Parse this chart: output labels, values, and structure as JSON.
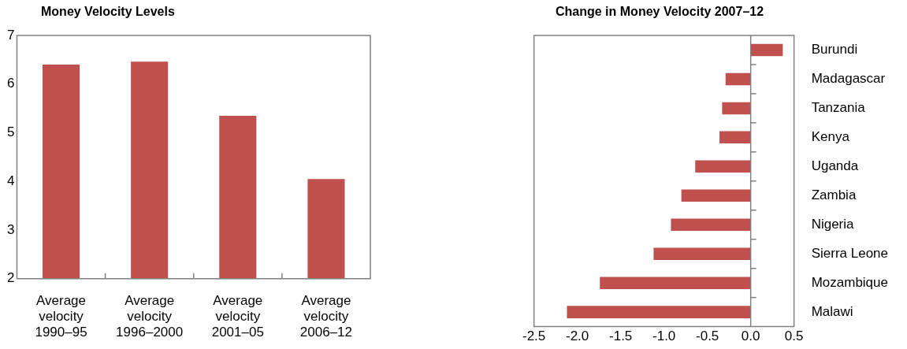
{
  "chart_data": [
    {
      "type": "bar",
      "title": "Money Velocity Levels",
      "categories": [
        "Average velocity 1990–95",
        "Average velocity 1996–2000",
        "Average velocity 2001–05",
        "Average velocity 2006–12"
      ],
      "values": [
        6.4,
        6.46,
        5.35,
        4.05
      ],
      "color": "#c0504d",
      "ylim": [
        2,
        7
      ],
      "yticks": [
        2,
        3,
        4,
        5,
        6,
        7
      ],
      "grid": false,
      "legend": false
    },
    {
      "type": "bar",
      "orientation": "horizontal",
      "title": "Change in Money Velocity 2007–12",
      "categories": [
        "Burundi",
        "Madagascar",
        "Tanzania",
        "Kenya",
        "Uganda",
        "Zambia",
        "Nigeria",
        "Sierra Leone",
        "Mozambique",
        "Malawi"
      ],
      "values": [
        0.37,
        -0.29,
        -0.33,
        -0.36,
        -0.64,
        -0.8,
        -0.92,
        -1.12,
        -1.74,
        -2.12
      ],
      "color": "#c0504d",
      "xlim": [
        -2.5,
        0.5
      ],
      "xticks": [
        {
          "value": -2.5,
          "label": "-2.5"
        },
        {
          "value": -2,
          "label": "-2.0"
        },
        {
          "value": -1.5,
          "label": "-1.5"
        },
        {
          "value": -1,
          "label": "-1.0"
        },
        {
          "value": -0.5,
          "label": "-0.5"
        },
        {
          "value": 0,
          "label": "0.0"
        },
        {
          "value": 0.5,
          "label": "0.5"
        }
      ],
      "grid": false,
      "legend": false,
      "ref_lines": [
        {
          "axis": "x",
          "value": 0,
          "color": "#808080"
        }
      ]
    }
  ]
}
